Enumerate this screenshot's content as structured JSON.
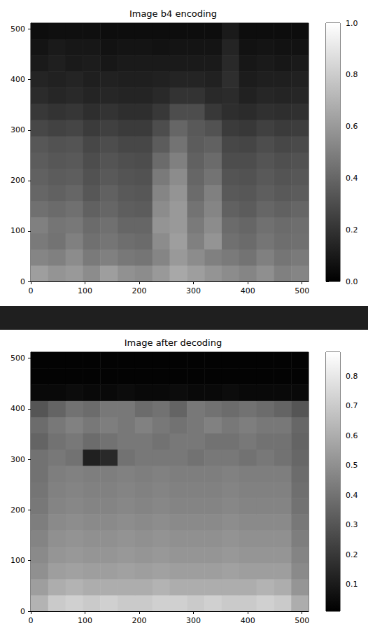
{
  "chart_data": [
    {
      "type": "heatmap",
      "title": "Image b4 encoding",
      "xlim": [
        0,
        512
      ],
      "ylim": [
        0,
        512
      ],
      "xticks": [
        0,
        100,
        200,
        300,
        400,
        500
      ],
      "yticks": [
        0,
        100,
        200,
        300,
        400,
        500
      ],
      "color_range": [
        0,
        1
      ],
      "color_ticks": [
        {
          "value": 0,
          "label": "0.0"
        },
        {
          "value": 0.2,
          "label": "0.2"
        },
        {
          "value": 0.4,
          "label": "0.4"
        },
        {
          "value": 0.6,
          "label": "0.6"
        },
        {
          "value": 0.8,
          "label": "0.8"
        },
        {
          "value": 1,
          "label": "1.0"
        }
      ],
      "cells": [
        [
          0.62,
          0.58,
          0.6,
          0.55,
          0.62,
          0.57,
          0.55,
          0.6,
          0.66,
          0.62,
          0.58,
          0.55,
          0.52,
          0.56,
          0.5,
          0.52
        ],
        [
          0.52,
          0.5,
          0.55,
          0.48,
          0.5,
          0.47,
          0.46,
          0.52,
          0.6,
          0.55,
          0.5,
          0.48,
          0.45,
          0.5,
          0.46,
          0.48
        ],
        [
          0.48,
          0.45,
          0.5,
          0.44,
          0.46,
          0.43,
          0.42,
          0.55,
          0.62,
          0.5,
          0.58,
          0.44,
          0.42,
          0.46,
          0.43,
          0.44
        ],
        [
          0.5,
          0.46,
          0.47,
          0.42,
          0.44,
          0.4,
          0.4,
          0.58,
          0.6,
          0.48,
          0.55,
          0.42,
          0.4,
          0.44,
          0.42,
          0.43
        ],
        [
          0.44,
          0.42,
          0.44,
          0.38,
          0.4,
          0.37,
          0.36,
          0.55,
          0.6,
          0.45,
          0.52,
          0.38,
          0.36,
          0.4,
          0.38,
          0.4
        ],
        [
          0.4,
          0.38,
          0.4,
          0.34,
          0.38,
          0.35,
          0.34,
          0.52,
          0.58,
          0.42,
          0.5,
          0.35,
          0.34,
          0.37,
          0.35,
          0.36
        ],
        [
          0.38,
          0.36,
          0.37,
          0.32,
          0.35,
          0.33,
          0.32,
          0.48,
          0.55,
          0.4,
          0.45,
          0.33,
          0.32,
          0.35,
          0.33,
          0.34
        ],
        [
          0.36,
          0.34,
          0.35,
          0.3,
          0.33,
          0.31,
          0.3,
          0.42,
          0.5,
          0.38,
          0.42,
          0.3,
          0.3,
          0.33,
          0.31,
          0.32
        ],
        [
          0.34,
          0.32,
          0.33,
          0.28,
          0.3,
          0.28,
          0.28,
          0.36,
          0.45,
          0.36,
          0.38,
          0.28,
          0.27,
          0.3,
          0.28,
          0.29
        ],
        [
          0.28,
          0.26,
          0.27,
          0.23,
          0.25,
          0.23,
          0.23,
          0.3,
          0.4,
          0.35,
          0.32,
          0.23,
          0.22,
          0.25,
          0.23,
          0.24
        ],
        [
          0.22,
          0.2,
          0.21,
          0.18,
          0.2,
          0.18,
          0.18,
          0.22,
          0.3,
          0.3,
          0.22,
          0.18,
          0.17,
          0.19,
          0.18,
          0.19
        ],
        [
          0.17,
          0.15,
          0.16,
          0.14,
          0.15,
          0.14,
          0.14,
          0.16,
          0.2,
          0.2,
          0.16,
          0.17,
          0.13,
          0.15,
          0.14,
          0.15
        ],
        [
          0.14,
          0.13,
          0.14,
          0.12,
          0.13,
          0.12,
          0.12,
          0.13,
          0.14,
          0.14,
          0.13,
          0.18,
          0.11,
          0.12,
          0.12,
          0.13
        ],
        [
          0.1,
          0.12,
          0.1,
          0.11,
          0.09,
          0.1,
          0.1,
          0.1,
          0.1,
          0.1,
          0.1,
          0.16,
          0.09,
          0.1,
          0.09,
          0.1
        ],
        [
          0.08,
          0.1,
          0.09,
          0.09,
          0.07,
          0.08,
          0.08,
          0.07,
          0.08,
          0.08,
          0.08,
          0.14,
          0.07,
          0.08,
          0.07,
          0.07
        ],
        [
          0.05,
          0.06,
          0.06,
          0.06,
          0.05,
          0.05,
          0.05,
          0.05,
          0.05,
          0.05,
          0.05,
          0.1,
          0.05,
          0.05,
          0.05,
          0.05
        ]
      ]
    },
    {
      "type": "heatmap",
      "title": "Image after decoding",
      "xlim": [
        0,
        512
      ],
      "ylim": [
        0,
        512
      ],
      "xticks": [
        0,
        100,
        200,
        300,
        400,
        500
      ],
      "yticks": [
        0,
        100,
        200,
        300,
        400,
        500
      ],
      "color_range": [
        0.01,
        0.88
      ],
      "color_ticks": [
        0.1,
        0.2,
        0.3,
        0.4,
        0.5,
        0.6,
        0.7,
        0.8
      ],
      "cells": [
        [
          0.62,
          0.7,
          0.72,
          0.7,
          0.72,
          0.7,
          0.7,
          0.72,
          0.72,
          0.7,
          0.72,
          0.7,
          0.7,
          0.72,
          0.7,
          0.6
        ],
        [
          0.55,
          0.6,
          0.62,
          0.6,
          0.6,
          0.6,
          0.6,
          0.62,
          0.6,
          0.6,
          0.6,
          0.6,
          0.6,
          0.62,
          0.6,
          0.52
        ],
        [
          0.5,
          0.55,
          0.56,
          0.55,
          0.55,
          0.56,
          0.55,
          0.56,
          0.55,
          0.55,
          0.55,
          0.56,
          0.55,
          0.55,
          0.55,
          0.48
        ],
        [
          0.48,
          0.52,
          0.53,
          0.52,
          0.52,
          0.53,
          0.52,
          0.53,
          0.52,
          0.52,
          0.52,
          0.53,
          0.52,
          0.52,
          0.52,
          0.46
        ],
        [
          0.46,
          0.5,
          0.51,
          0.5,
          0.5,
          0.51,
          0.5,
          0.51,
          0.5,
          0.5,
          0.5,
          0.51,
          0.5,
          0.5,
          0.5,
          0.44
        ],
        [
          0.44,
          0.48,
          0.49,
          0.48,
          0.48,
          0.49,
          0.48,
          0.49,
          0.48,
          0.48,
          0.48,
          0.49,
          0.48,
          0.48,
          0.48,
          0.42
        ],
        [
          0.42,
          0.46,
          0.47,
          0.46,
          0.46,
          0.47,
          0.46,
          0.47,
          0.46,
          0.46,
          0.46,
          0.47,
          0.46,
          0.46,
          0.46,
          0.4
        ],
        [
          0.41,
          0.45,
          0.46,
          0.45,
          0.45,
          0.46,
          0.45,
          0.46,
          0.45,
          0.45,
          0.45,
          0.46,
          0.45,
          0.45,
          0.45,
          0.39
        ],
        [
          0.4,
          0.44,
          0.45,
          0.44,
          0.44,
          0.45,
          0.44,
          0.45,
          0.44,
          0.44,
          0.44,
          0.45,
          0.44,
          0.44,
          0.44,
          0.38
        ],
        [
          0.4,
          0.42,
          0.4,
          0.12,
          0.15,
          0.4,
          0.42,
          0.42,
          0.42,
          0.4,
          0.42,
          0.42,
          0.4,
          0.42,
          0.4,
          0.36
        ],
        [
          0.35,
          0.4,
          0.42,
          0.38,
          0.4,
          0.42,
          0.42,
          0.4,
          0.42,
          0.42,
          0.4,
          0.4,
          0.42,
          0.4,
          0.4,
          0.35
        ],
        [
          0.38,
          0.42,
          0.45,
          0.42,
          0.44,
          0.42,
          0.45,
          0.42,
          0.4,
          0.42,
          0.45,
          0.42,
          0.44,
          0.42,
          0.42,
          0.36
        ],
        [
          0.3,
          0.35,
          0.4,
          0.38,
          0.42,
          0.42,
          0.38,
          0.4,
          0.35,
          0.42,
          0.4,
          0.38,
          0.4,
          0.38,
          0.35,
          0.3
        ],
        [
          0.04,
          0.04,
          0.05,
          0.04,
          0.04,
          0.05,
          0.04,
          0.04,
          0.05,
          0.04,
          0.04,
          0.05,
          0.04,
          0.04,
          0.04,
          0.04
        ],
        [
          0.02,
          0.02,
          0.02,
          0.02,
          0.02,
          0.02,
          0.02,
          0.02,
          0.02,
          0.02,
          0.02,
          0.02,
          0.02,
          0.02,
          0.02,
          0.02
        ],
        [
          0.02,
          0.02,
          0.02,
          0.02,
          0.02,
          0.02,
          0.02,
          0.02,
          0.02,
          0.02,
          0.02,
          0.02,
          0.02,
          0.02,
          0.02,
          0.02
        ]
      ]
    }
  ]
}
